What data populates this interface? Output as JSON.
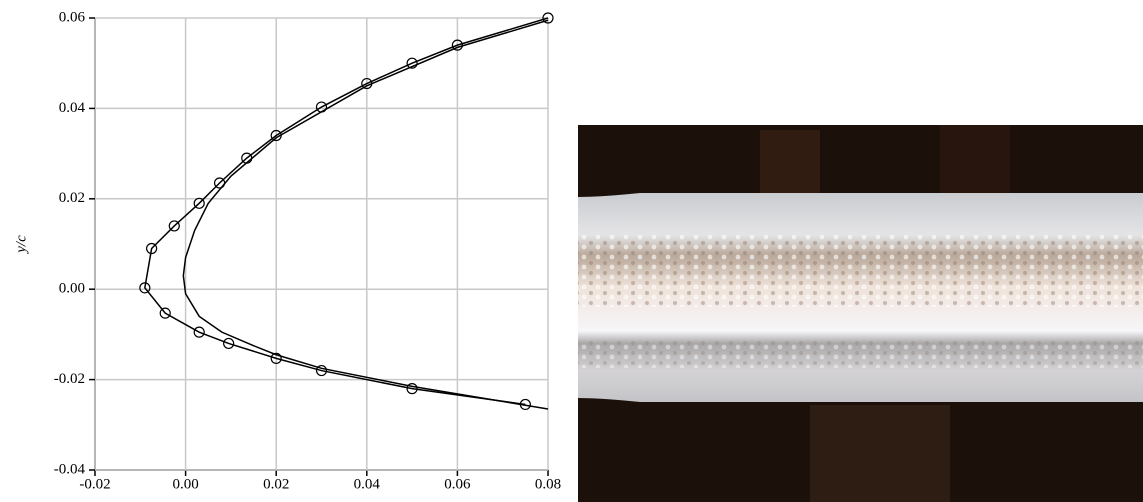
{
  "chart_data": {
    "type": "line",
    "y_label": "y/c",
    "series": [
      {
        "color": "#000000",
        "marker": "circle",
        "x": [
          0.08,
          0.06,
          0.05,
          0.04,
          0.03,
          0.02,
          0.0135,
          0.0075,
          0.003,
          -0.0025,
          -0.0075,
          -0.009,
          -0.0045,
          0.003,
          0.0095,
          0.02,
          0.03,
          0.05,
          0.075
        ],
        "values": [
          0.06,
          0.054,
          0.05,
          0.0455,
          0.0403,
          0.034,
          0.029,
          0.0235,
          0.019,
          0.014,
          0.009,
          0.0003,
          -0.0053,
          -0.0095,
          -0.012,
          -0.0153,
          -0.018,
          -0.022,
          -0.0255
        ]
      },
      {
        "color": "#000000",
        "marker": "none",
        "x": [
          0.08,
          0.06,
          0.04,
          0.02,
          0.01,
          0.005,
          0.002,
          0.0,
          -0.0005,
          0.0,
          0.003,
          0.008,
          0.015,
          0.02,
          0.03,
          0.05,
          0.08
        ],
        "values": [
          0.0595,
          0.0535,
          0.045,
          0.0335,
          0.025,
          0.019,
          0.013,
          0.007,
          0.003,
          -0.001,
          -0.006,
          -0.0095,
          -0.0125,
          -0.0145,
          -0.0175,
          -0.0215,
          -0.0265
        ]
      }
    ],
    "xlim": [
      -0.02,
      0.08
    ],
    "xticks": [
      -0.02,
      {
        "value": 0,
        "label": "0.00"
      },
      0.02,
      0.04,
      0.06,
      0.08
    ],
    "ylim": [
      -0.04,
      0.06
    ],
    "yticks": [
      -0.04,
      -0.02,
      {
        "value": 0,
        "label": "0.00"
      },
      0.02,
      0.04,
      0.06
    ],
    "grid": true
  }
}
